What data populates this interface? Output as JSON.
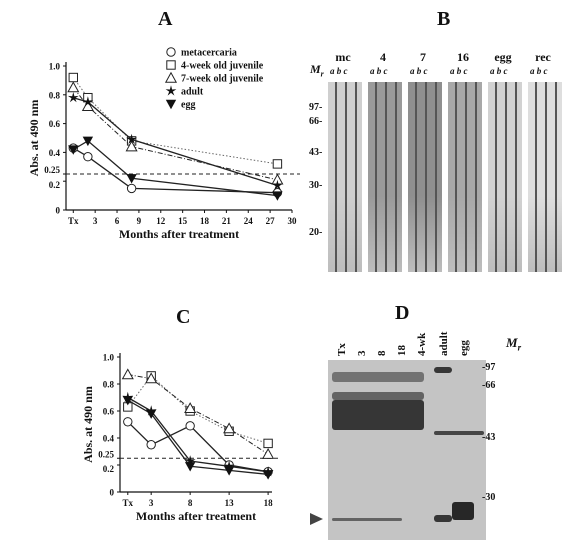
{
  "panels": {
    "A": {
      "letter": "A"
    },
    "B": {
      "letter": "B"
    },
    "C": {
      "letter": "C"
    },
    "D": {
      "letter": "D"
    }
  },
  "chart_data": [
    {
      "id": "A",
      "type": "line",
      "xlabel": "Months after treatment",
      "ylabel": "Abs. at 490 nm",
      "x_ticks": [
        "Tx",
        "3",
        "6",
        "9",
        "12",
        "15",
        "18",
        "21",
        "24",
        "27",
        "30"
      ],
      "x_tick_values": [
        0,
        3,
        6,
        9,
        12,
        15,
        18,
        21,
        24,
        27,
        30
      ],
      "xlim": [
        -1,
        30
      ],
      "ylim": [
        0,
        1.0
      ],
      "y_ticks": [
        "0",
        "0.2",
        "0.25",
        "0.4",
        "0.6",
        "0.8",
        "1.0"
      ],
      "y_tick_values": [
        0,
        0.2,
        0.25,
        0.4,
        0.6,
        0.8,
        1.0
      ],
      "cutoff": 0.25,
      "legend_position": "top-right",
      "series": [
        {
          "name": "metacercaria",
          "marker": "circle-open",
          "style": "solid",
          "x": [
            0,
            2,
            8,
            28
          ],
          "y": [
            0.43,
            0.37,
            0.15,
            0.12
          ]
        },
        {
          "name": "4-week old juvenile",
          "marker": "square-open",
          "style": "dotted",
          "x": [
            0,
            2,
            8,
            28
          ],
          "y": [
            0.92,
            0.78,
            0.48,
            0.32
          ]
        },
        {
          "name": "7-week old juvenile",
          "marker": "triangle-open",
          "style": "dashdot",
          "x": [
            0,
            2,
            8,
            28
          ],
          "y": [
            0.85,
            0.72,
            0.44,
            0.21
          ]
        },
        {
          "name": "adult",
          "marker": "star",
          "style": "solid",
          "x": [
            0,
            2,
            8,
            28
          ],
          "y": [
            0.78,
            0.75,
            0.49,
            0.17
          ]
        },
        {
          "name": "egg",
          "marker": "triangle-down-filled",
          "style": "solid",
          "x": [
            0,
            2,
            8,
            28
          ],
          "y": [
            0.42,
            0.48,
            0.22,
            0.1
          ]
        }
      ]
    },
    {
      "id": "C",
      "type": "line",
      "xlabel": "Months after treatment",
      "ylabel": "Abs. at 490 nm",
      "x_ticks": [
        "Tx",
        "3",
        "8",
        "13",
        "18"
      ],
      "x_tick_values": [
        0,
        3,
        8,
        13,
        18
      ],
      "xlim": [
        -1,
        18.5
      ],
      "ylim": [
        0,
        1.0
      ],
      "y_ticks": [
        "0",
        "0.2",
        "0.25",
        "0.4",
        "0.6",
        "0.8",
        "1.0"
      ],
      "y_tick_values": [
        0,
        0.2,
        0.25,
        0.4,
        0.6,
        0.8,
        1.0
      ],
      "cutoff": 0.25,
      "series": [
        {
          "name": "metacercaria",
          "marker": "circle-open",
          "style": "solid",
          "x": [
            0,
            3,
            8,
            13,
            18
          ],
          "y": [
            0.52,
            0.35,
            0.49,
            0.2,
            0.15
          ]
        },
        {
          "name": "4-week old juvenile",
          "marker": "square-open",
          "style": "dotted",
          "x": [
            0,
            3,
            8,
            13,
            18
          ],
          "y": [
            0.63,
            0.86,
            0.6,
            0.45,
            0.36
          ]
        },
        {
          "name": "7-week old juvenile",
          "marker": "triangle-open",
          "style": "dashdot",
          "x": [
            0,
            3,
            8,
            13,
            18
          ],
          "y": [
            0.87,
            0.84,
            0.62,
            0.47,
            0.28
          ]
        },
        {
          "name": "adult",
          "marker": "star",
          "style": "solid",
          "x": [
            0,
            3,
            8,
            13,
            18
          ],
          "y": [
            0.7,
            0.6,
            0.23,
            0.19,
            0.15
          ]
        },
        {
          "name": "egg",
          "marker": "triangle-down-filled",
          "style": "solid",
          "x": [
            0,
            3,
            8,
            13,
            18
          ],
          "y": [
            0.68,
            0.58,
            0.19,
            0.16,
            0.13
          ]
        }
      ]
    }
  ],
  "blot": {
    "mr_label": "M",
    "mr_sub": "r",
    "markers": [
      "97",
      "66",
      "43",
      "30",
      "20"
    ],
    "groups": [
      {
        "label": "mc",
        "lanes": "a b c"
      },
      {
        "label": "4",
        "lanes": "a b c"
      },
      {
        "label": "7",
        "lanes": "a b c"
      },
      {
        "label": "16",
        "lanes": "a b c"
      },
      {
        "label": "egg",
        "lanes": "a b c"
      },
      {
        "label": "rec",
        "lanes": "a b c"
      }
    ]
  },
  "gel": {
    "mr_label": "M",
    "mr_sub": "r",
    "markers": [
      "97",
      "66",
      "43",
      "30"
    ],
    "lanes": [
      "Tx",
      "3",
      "8",
      "18",
      "4-wk",
      "adult",
      "egg"
    ]
  },
  "colors": {
    "line": "#222222",
    "dotted": "#777777",
    "cutoff": "#222222",
    "gel_bg": "#c9c9c9",
    "band": "#2b2b2b"
  }
}
